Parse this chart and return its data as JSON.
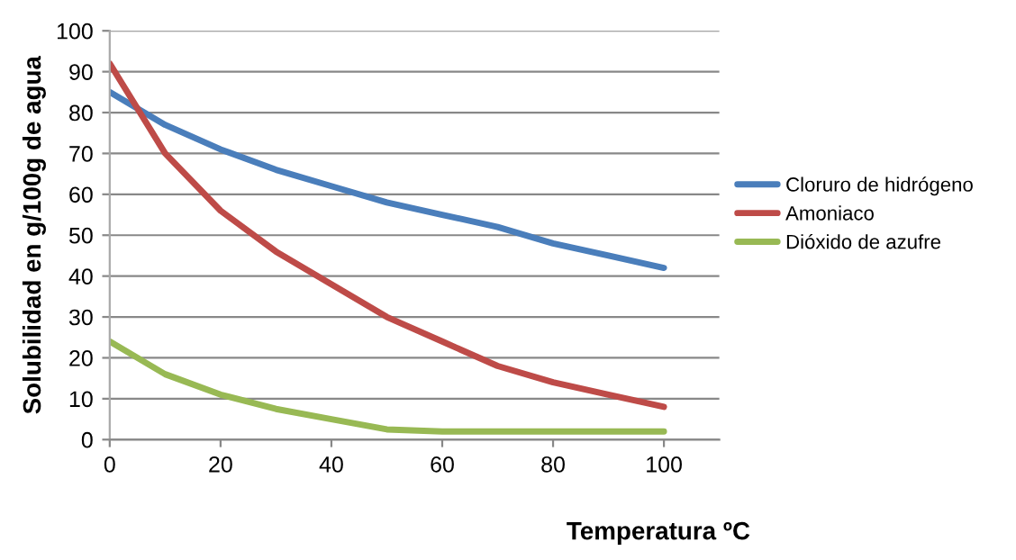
{
  "chart_data": {
    "type": "line",
    "xlabel": "Temperatura ºC",
    "ylabel": "Solubilidad en g/100g de agua",
    "x": [
      0,
      10,
      20,
      30,
      40,
      50,
      60,
      70,
      80,
      90,
      100
    ],
    "series": [
      {
        "name": "Cloruro de hidrógeno",
        "color": "#4a7ebb",
        "values": [
          85,
          77,
          71,
          66,
          62,
          58,
          55,
          52,
          48,
          45,
          42
        ]
      },
      {
        "name": "Amoniaco",
        "color": "#be4b48",
        "values": [
          92,
          70,
          56,
          46,
          38,
          30,
          24,
          18,
          14,
          11,
          8
        ]
      },
      {
        "name": "Dióxido de azufre",
        "color": "#98b954",
        "values": [
          24,
          16,
          11,
          7.5,
          5,
          2.5,
          2,
          2,
          2,
          2,
          2
        ]
      }
    ],
    "xlim": [
      0,
      110
    ],
    "xticks": [
      0,
      20,
      40,
      60,
      80,
      100
    ],
    "ylim": [
      0,
      100
    ],
    "yticks": [
      0,
      10,
      20,
      30,
      40,
      50,
      60,
      70,
      80,
      90,
      100
    ],
    "grid": "y",
    "legend": "right",
    "marker": "none",
    "line_style": "solid"
  }
}
